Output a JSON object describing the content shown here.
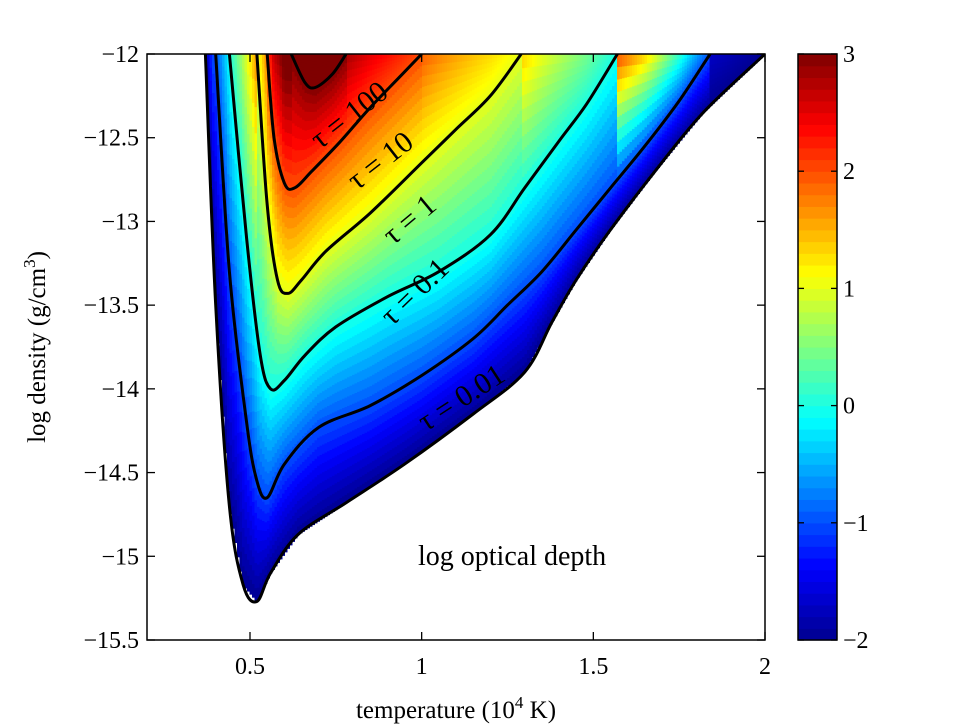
{
  "chart_data": {
    "type": "heatmap",
    "title": "",
    "xlabel": "temperature (10",
    "xlabel_sup": "4",
    "xlabel_end": " K)",
    "ylabel": "log density (g/cm",
    "ylabel_sup": "3",
    "ylabel_end": ")",
    "xlim": [
      0.2,
      2.0
    ],
    "ylim": [
      -15.5,
      -12.0
    ],
    "x_ticks": [
      0.5,
      1.0,
      1.5,
      2.0
    ],
    "x_tick_labels": [
      "0.5",
      "1",
      "1.5",
      "2"
    ],
    "y_ticks": [
      -12.0,
      -12.5,
      -13.0,
      -13.5,
      -14.0,
      -14.5,
      -15.0,
      -15.5
    ],
    "y_tick_labels": [
      "−12",
      "−12.5",
      "−13",
      "−13.5",
      "−14",
      "−14.5",
      "−15",
      "−15.5"
    ],
    "annotation": "log optical depth",
    "colorbar": {
      "min": -2,
      "max": 3,
      "ticks": [
        -2,
        -1,
        0,
        1,
        2,
        3
      ],
      "tick_labels": [
        "−2",
        "−1",
        "0",
        "1",
        "2",
        "3"
      ],
      "colormap": "jet",
      "stops": [
        "#00008f",
        "#0000ff",
        "#007fff",
        "#00ffff",
        "#7fff7f",
        "#ffff00",
        "#ff7f00",
        "#ff0000",
        "#7f0000"
      ]
    },
    "value_field_description_level": "log tau",
    "contours": [
      {
        "level": -2,
        "label": "τ = 0.01",
        "points": [
          [
            0.37,
            -12.0
          ],
          [
            0.4,
            -13.5
          ],
          [
            0.44,
            -14.7
          ],
          [
            0.48,
            -15.17
          ],
          [
            0.52,
            -15.27
          ],
          [
            0.56,
            -15.1
          ],
          [
            0.64,
            -14.87
          ],
          [
            0.78,
            -14.68
          ],
          [
            0.95,
            -14.45
          ],
          [
            1.15,
            -14.15
          ],
          [
            1.3,
            -13.9
          ],
          [
            1.38,
            -13.6
          ],
          [
            1.45,
            -13.35
          ],
          [
            1.55,
            -13.05
          ],
          [
            1.68,
            -12.7
          ],
          [
            1.82,
            -12.35
          ],
          [
            2.0,
            -12.0
          ]
        ]
      },
      {
        "level": -1,
        "label": "τ = 0.1",
        "points": [
          [
            0.4,
            -12.0
          ],
          [
            0.44,
            -13.3
          ],
          [
            0.49,
            -14.2
          ],
          [
            0.52,
            -14.55
          ],
          [
            0.55,
            -14.65
          ],
          [
            0.6,
            -14.45
          ],
          [
            0.7,
            -14.23
          ],
          [
            0.85,
            -14.1
          ],
          [
            1.0,
            -13.92
          ],
          [
            1.15,
            -13.7
          ],
          [
            1.25,
            -13.5
          ],
          [
            1.35,
            -13.3
          ],
          [
            1.45,
            -13.05
          ],
          [
            1.55,
            -12.8
          ],
          [
            1.65,
            -12.55
          ],
          [
            1.75,
            -12.28
          ],
          [
            1.84,
            -12.0
          ]
        ]
      },
      {
        "level": 0,
        "label": "τ = 1",
        "points": [
          [
            0.44,
            -12.0
          ],
          [
            0.49,
            -13.1
          ],
          [
            0.53,
            -13.8
          ],
          [
            0.56,
            -14.0
          ],
          [
            0.6,
            -13.95
          ],
          [
            0.66,
            -13.8
          ],
          [
            0.75,
            -13.63
          ],
          [
            0.9,
            -13.45
          ],
          [
            1.05,
            -13.3
          ],
          [
            1.2,
            -13.08
          ],
          [
            1.3,
            -12.8
          ],
          [
            1.4,
            -12.52
          ],
          [
            1.48,
            -12.3
          ],
          [
            1.57,
            -12.0
          ]
        ]
      },
      {
        "level": 1,
        "label": "τ = 10",
        "points": [
          [
            0.52,
            -12.0
          ],
          [
            0.55,
            -12.9
          ],
          [
            0.58,
            -13.35
          ],
          [
            0.61,
            -13.43
          ],
          [
            0.65,
            -13.35
          ],
          [
            0.72,
            -13.18
          ],
          [
            0.85,
            -12.95
          ],
          [
            1.0,
            -12.65
          ],
          [
            1.1,
            -12.45
          ],
          [
            1.2,
            -12.25
          ],
          [
            1.29,
            -12.0
          ]
        ]
      },
      {
        "level": 2,
        "label": "τ = 100",
        "points": [
          [
            0.55,
            -12.0
          ],
          [
            0.57,
            -12.5
          ],
          [
            0.6,
            -12.77
          ],
          [
            0.63,
            -12.8
          ],
          [
            0.68,
            -12.7
          ],
          [
            0.76,
            -12.53
          ],
          [
            0.85,
            -12.32
          ],
          [
            0.93,
            -12.15
          ],
          [
            1.0,
            -12.0
          ]
        ]
      },
      {
        "level": 3,
        "label": "",
        "points": [
          [
            0.62,
            -12.0
          ],
          [
            0.66,
            -12.17
          ],
          [
            0.69,
            -12.2
          ],
          [
            0.74,
            -12.12
          ],
          [
            0.78,
            -12.0
          ]
        ]
      }
    ]
  }
}
